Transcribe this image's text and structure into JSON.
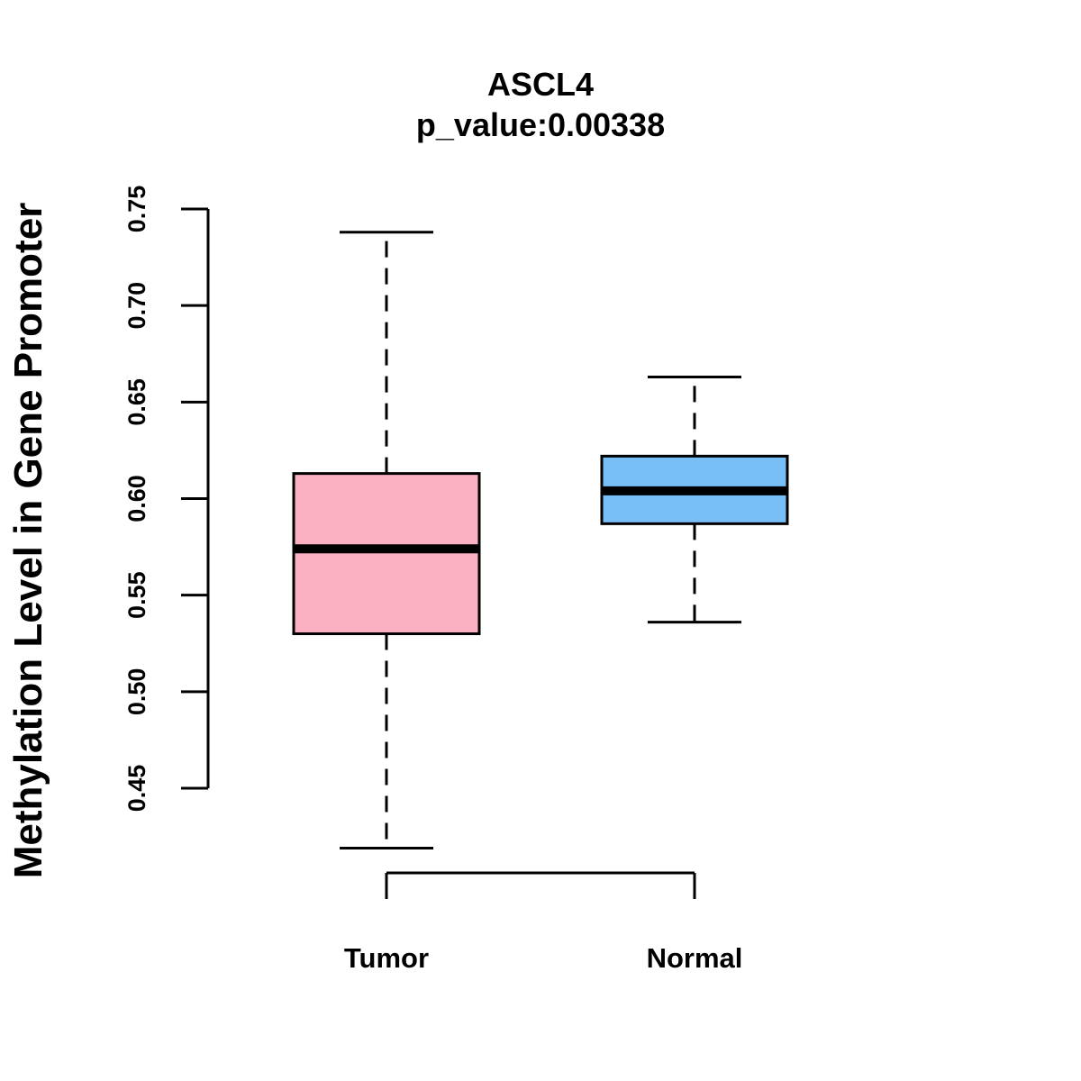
{
  "chart_data": {
    "type": "boxplot",
    "title": "ASCL4",
    "subtitle": "p_value:0.00338",
    "xlabel": "",
    "ylabel": "Methylation Level in Gene Promoter",
    "ylim": [
      0.45,
      0.75
    ],
    "yticks": [
      "0.45",
      "0.50",
      "0.55",
      "0.60",
      "0.65",
      "0.70",
      "0.75"
    ],
    "categories": [
      "Tumor",
      "Normal"
    ],
    "series": [
      {
        "name": "Tumor",
        "color": "#fbb1c2",
        "whisker_low": 0.419,
        "q1": 0.53,
        "median": 0.574,
        "q3": 0.613,
        "whisker_high": 0.738
      },
      {
        "name": "Normal",
        "color": "#78bff8",
        "whisker_low": 0.536,
        "q1": 0.587,
        "median": 0.604,
        "q3": 0.622,
        "whisker_high": 0.663
      }
    ],
    "grid": false,
    "legend": "none"
  }
}
